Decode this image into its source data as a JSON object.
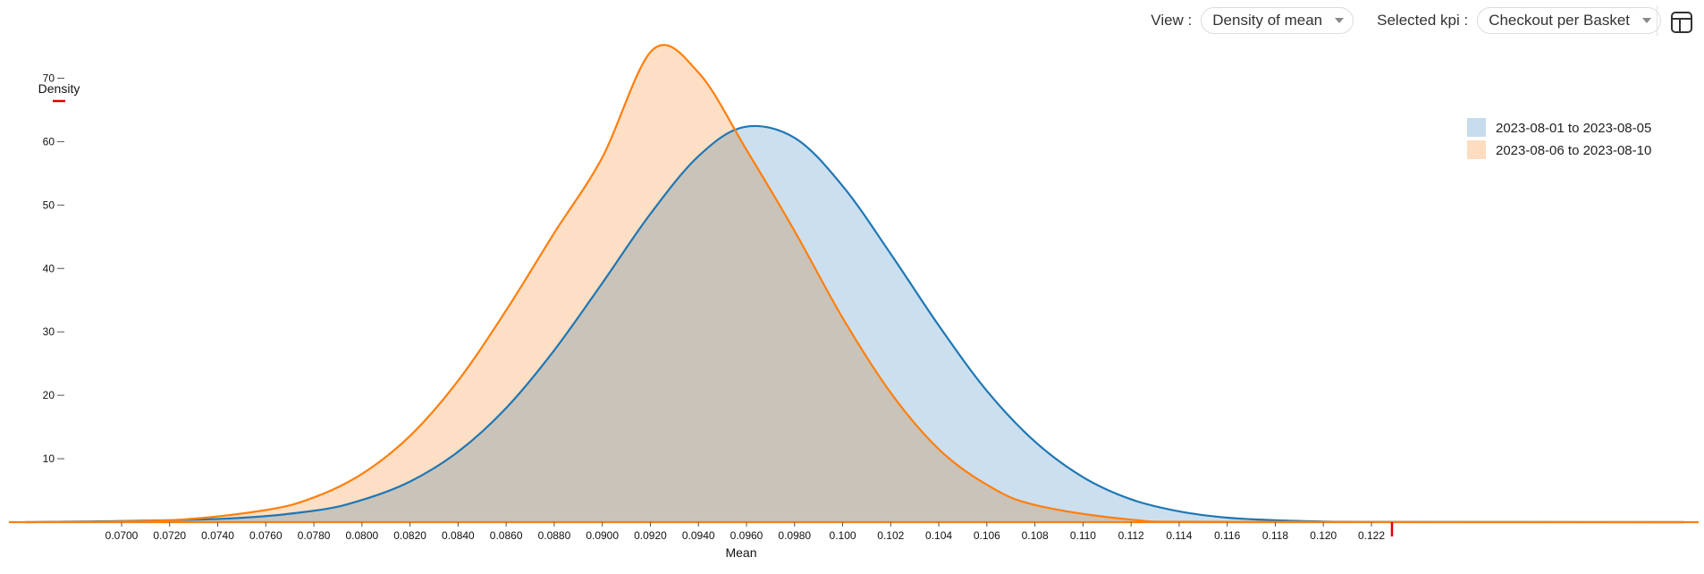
{
  "toolbar": {
    "view_label": "View :",
    "view_value": "Density of mean",
    "kpi_label": "Selected kpi :",
    "kpi_value": "Checkout per Basket",
    "table_icon": "table-icon"
  },
  "chart_data": {
    "type": "area",
    "title": "",
    "xlabel": "Mean",
    "ylabel": "Density",
    "xlim": [
      0.0655,
      0.1358
    ],
    "ylim": [
      0,
      75
    ],
    "grid": false,
    "legend_position": "top-right",
    "x_ticks": [
      "0.0700",
      "0.0720",
      "0.0740",
      "0.0760",
      "0.0780",
      "0.0800",
      "0.0820",
      "0.0840",
      "0.0860",
      "0.0880",
      "0.0900",
      "0.0920",
      "0.0940",
      "0.0960",
      "0.0980",
      "0.100",
      "0.102",
      "0.104",
      "0.106",
      "0.108",
      "0.110",
      "0.112",
      "0.114",
      "0.116",
      "0.118",
      "0.120",
      "0.122"
    ],
    "y_ticks": [
      10,
      20,
      30,
      40,
      50,
      60,
      70
    ],
    "series": [
      {
        "name": "2023-08-01 to 2023-08-05",
        "line_color": "#1f77b4",
        "fill_color": "#c6dcec",
        "x": [
          0.066,
          0.074,
          0.078,
          0.08,
          0.082,
          0.084,
          0.086,
          0.088,
          0.09,
          0.092,
          0.094,
          0.0959,
          0.098,
          0.1,
          0.102,
          0.104,
          0.106,
          0.108,
          0.11,
          0.112,
          0.114,
          0.116,
          0.118,
          0.12,
          0.122,
          0.135
        ],
        "y": [
          0,
          0.5,
          1.8,
          3.5,
          6.4,
          11.1,
          18.0,
          27.1,
          37.7,
          48.6,
          57.7,
          62.3,
          60.6,
          53.0,
          42.3,
          31.0,
          20.7,
          12.7,
          7.1,
          3.6,
          1.7,
          0.7,
          0.3,
          0.1,
          0.04,
          0
        ]
      },
      {
        "name": "2023-08-06 to 2023-08-10",
        "line_color": "#ff7f0e",
        "fill_color": "#fddcc0",
        "x": [
          0.066,
          0.072,
          0.076,
          0.078,
          0.08,
          0.082,
          0.084,
          0.086,
          0.088,
          0.09,
          0.0921,
          0.094,
          0.096,
          0.098,
          0.1,
          0.102,
          0.104,
          0.106,
          0.108,
          0.112,
          0.116,
          0.135
        ],
        "y": [
          0,
          0.3,
          1.9,
          3.9,
          7.6,
          13.6,
          22.3,
          33.4,
          45.6,
          57.5,
          74.5,
          70.9,
          58.7,
          45.9,
          32.2,
          20.4,
          11.5,
          5.9,
          2.7,
          0.4,
          0.05,
          0
        ]
      }
    ]
  }
}
